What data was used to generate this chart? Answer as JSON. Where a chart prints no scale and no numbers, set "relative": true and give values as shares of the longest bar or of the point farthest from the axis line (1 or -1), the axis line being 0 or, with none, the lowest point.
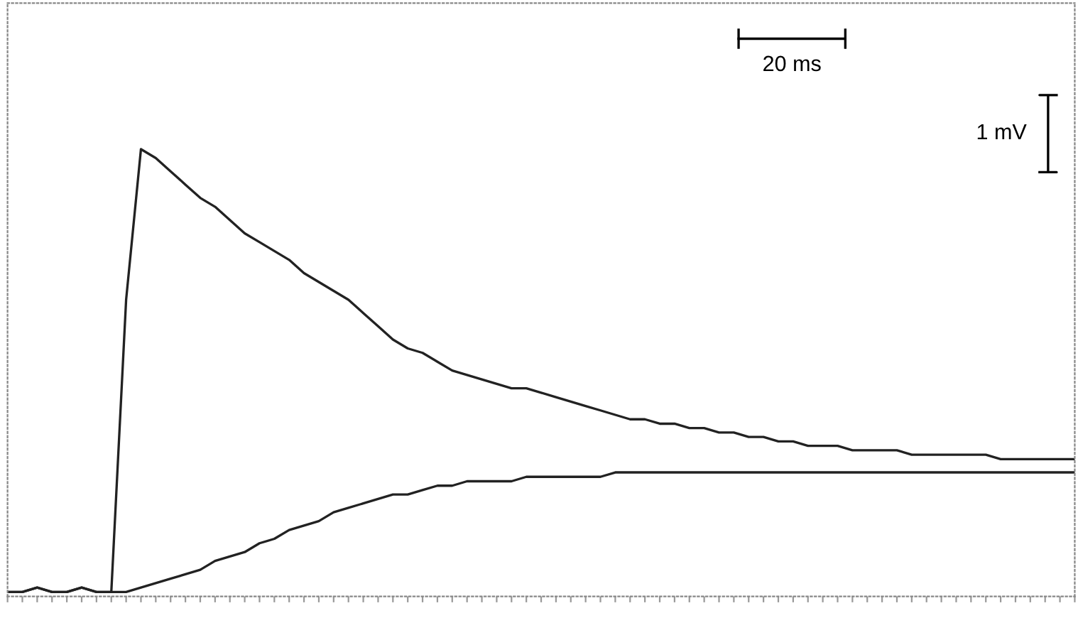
{
  "chart_data": {
    "type": "line",
    "relative": true,
    "categories": [
      null,
      null,
      null,
      null,
      null,
      null,
      null,
      null,
      null,
      null,
      null,
      null,
      null,
      null,
      null,
      null,
      null,
      null,
      null,
      null,
      null,
      null,
      null,
      null,
      null,
      null,
      null,
      null,
      null,
      null,
      null,
      null,
      null,
      null,
      null,
      null,
      null,
      null,
      null,
      null,
      null,
      null,
      null,
      null,
      null,
      null,
      null,
      null,
      null,
      null,
      null,
      null,
      null,
      null,
      null,
      null,
      null,
      null,
      null,
      null,
      null,
      null,
      null,
      null,
      null,
      null,
      null,
      null,
      null,
      null,
      null,
      null,
      null
    ],
    "series": [
      {
        "color": "#222222",
        "values": [
          0,
          0.0,
          0.01,
          0,
          0,
          0.01,
          0,
          0,
          0.66,
          1.0,
          0.98,
          0.95,
          0.92,
          0.89,
          0.87,
          0.84,
          0.81,
          0.79,
          0.77,
          0.75,
          0.72,
          0.7,
          0.68,
          0.66,
          0.63,
          0.6,
          0.57,
          0.55,
          0.54,
          0.52,
          0.5,
          0.49,
          0.48,
          0.47,
          0.46,
          0.46,
          0.45,
          0.44,
          0.43,
          0.42,
          0.41,
          0.4,
          0.39,
          0.39,
          0.38,
          0.38,
          0.37,
          0.37,
          0.36,
          0.36,
          0.35,
          0.35,
          0.34,
          0.34,
          0.33,
          0.33,
          0.33,
          0.32,
          0.32,
          0.32,
          0.32,
          0.31,
          0.31,
          0.31,
          0.31,
          0.31,
          0.31,
          0.3,
          0.3,
          0.3,
          0.3,
          0.3,
          0.3
        ]
      },
      {
        "color": "#222222",
        "values": [
          0,
          0.0,
          0.01,
          0,
          0,
          0.01,
          0,
          0,
          0,
          0.01,
          0.02,
          0.03,
          0.04,
          0.05,
          0.07,
          0.08,
          0.09,
          0.11,
          0.12,
          0.14,
          0.15,
          0.16,
          0.18,
          0.19,
          0.2,
          0.21,
          0.22,
          0.22,
          0.23,
          0.24,
          0.24,
          0.25,
          0.25,
          0.25,
          0.25,
          0.26,
          0.26,
          0.26,
          0.26,
          0.26,
          0.26,
          0.27,
          0.27,
          0.27,
          0.27,
          0.27,
          0.27,
          0.27,
          0.27,
          0.27,
          0.27,
          0.27,
          0.27,
          0.27,
          0.27,
          0.27,
          0.27,
          0.27,
          0.27,
          0.27,
          0.27,
          0.27,
          0.27,
          0.27,
          0.27,
          0.27,
          0.27,
          0.27,
          0.27,
          0.27,
          0.27,
          0.27,
          0.27
        ]
      }
    ],
    "annotations": [
      "20 ms",
      "1 mV"
    ]
  }
}
